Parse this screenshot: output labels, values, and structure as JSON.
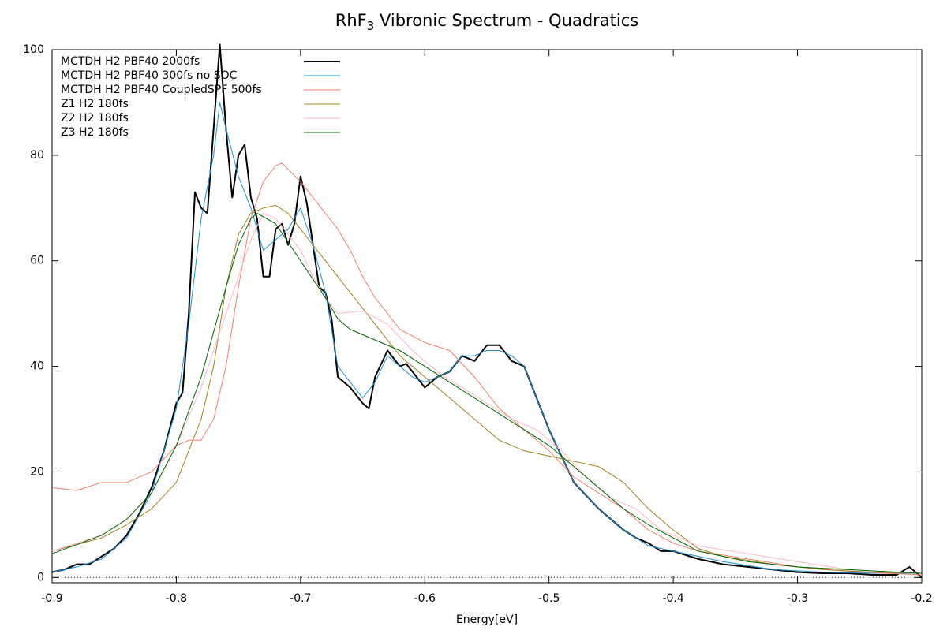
{
  "chart_data": {
    "type": "line",
    "title": [
      "RhF",
      "3",
      " Vibronic Spectrum - Quadratics"
    ],
    "x_label": "Energy[eV]",
    "xlim": [
      -0.9,
      -0.2
    ],
    "xticks": [
      -0.9,
      -0.8,
      -0.7,
      -0.6,
      -0.5,
      -0.4,
      -0.3,
      -0.2
    ],
    "ylim": [
      -1,
      100
    ],
    "yticks": [
      0,
      20,
      40,
      60,
      80,
      100
    ],
    "zero_axis": true,
    "legend": "top-left",
    "series": [
      {
        "name": "MCTDH H2 PBF40 2000fs",
        "color": "#000000",
        "line_width": 2,
        "x": [
          -0.9,
          -0.89,
          -0.88,
          -0.87,
          -0.86,
          -0.85,
          -0.84,
          -0.83,
          -0.82,
          -0.81,
          -0.8,
          -0.795,
          -0.79,
          -0.785,
          -0.78,
          -0.775,
          -0.77,
          -0.765,
          -0.76,
          -0.755,
          -0.75,
          -0.745,
          -0.74,
          -0.735,
          -0.73,
          -0.725,
          -0.72,
          -0.715,
          -0.71,
          -0.705,
          -0.7,
          -0.695,
          -0.69,
          -0.685,
          -0.68,
          -0.675,
          -0.67,
          -0.66,
          -0.65,
          -0.645,
          -0.64,
          -0.63,
          -0.62,
          -0.615,
          -0.61,
          -0.6,
          -0.59,
          -0.58,
          -0.57,
          -0.56,
          -0.55,
          -0.54,
          -0.53,
          -0.52,
          -0.51,
          -0.5,
          -0.49,
          -0.48,
          -0.47,
          -0.46,
          -0.45,
          -0.44,
          -0.43,
          -0.42,
          -0.41,
          -0.4,
          -0.38,
          -0.36,
          -0.34,
          -0.32,
          -0.3,
          -0.28,
          -0.26,
          -0.24,
          -0.22,
          -0.21,
          -0.2
        ],
        "values": [
          1,
          1.5,
          2.5,
          2.5,
          4,
          5.5,
          8,
          12,
          17,
          24,
          33,
          35,
          50,
          73,
          70,
          69,
          85,
          101,
          85,
          72,
          80,
          82,
          72,
          68,
          57,
          57,
          66,
          67,
          63,
          67,
          76,
          71,
          63,
          55,
          54,
          49,
          38,
          36,
          33,
          32,
          38,
          43,
          40,
          40.5,
          39,
          36,
          38,
          39,
          42,
          41,
          44,
          44,
          41,
          40,
          34,
          28,
          23,
          18,
          15.5,
          13,
          11,
          9,
          7.5,
          6.5,
          5,
          5,
          3.5,
          2.5,
          2,
          1.5,
          1,
          0.8,
          0.8,
          0.5,
          0.5,
          2,
          0
        ]
      },
      {
        "name": "MCTDH H2 PBF40 300fs no SOC",
        "color": "#1a8fd8",
        "line_width": 1,
        "x": [
          -0.9,
          -0.88,
          -0.86,
          -0.84,
          -0.82,
          -0.8,
          -0.79,
          -0.78,
          -0.77,
          -0.765,
          -0.76,
          -0.75,
          -0.74,
          -0.73,
          -0.72,
          -0.71,
          -0.7,
          -0.69,
          -0.68,
          -0.67,
          -0.66,
          -0.65,
          -0.64,
          -0.63,
          -0.62,
          -0.61,
          -0.6,
          -0.59,
          -0.58,
          -0.57,
          -0.56,
          -0.55,
          -0.54,
          -0.53,
          -0.52,
          -0.51,
          -0.5,
          -0.48,
          -0.46,
          -0.44,
          -0.42,
          -0.4,
          -0.36,
          -0.32,
          -0.28,
          -0.24,
          -0.2
        ],
        "values": [
          1,
          2,
          3.5,
          7.5,
          16,
          32,
          48,
          68,
          80,
          90,
          85,
          76,
          70,
          62,
          64,
          66,
          70,
          63,
          54,
          40,
          37,
          34,
          37,
          42,
          40,
          38,
          37,
          38,
          39,
          42,
          42,
          43,
          43,
          42,
          40,
          34,
          28,
          18,
          13,
          9,
          6,
          5,
          3,
          1.5,
          1,
          0.8,
          0.8
        ]
      },
      {
        "name": "MCTDH H2 PBF40 CoupledSPF 500fs",
        "color": "#f08070",
        "line_width": 1,
        "x": [
          -0.9,
          -0.88,
          -0.86,
          -0.84,
          -0.82,
          -0.8,
          -0.79,
          -0.78,
          -0.77,
          -0.76,
          -0.75,
          -0.74,
          -0.73,
          -0.72,
          -0.715,
          -0.7,
          -0.69,
          -0.68,
          -0.67,
          -0.66,
          -0.65,
          -0.64,
          -0.62,
          -0.6,
          -0.58,
          -0.56,
          -0.54,
          -0.52,
          -0.5,
          -0.48,
          -0.46,
          -0.44,
          -0.42,
          -0.4,
          -0.38,
          -0.34,
          -0.3,
          -0.25,
          -0.2
        ],
        "values": [
          17,
          16.5,
          18,
          18,
          20,
          25,
          26,
          26,
          30,
          40,
          55,
          68,
          75,
          78,
          78.5,
          75,
          72,
          69,
          66,
          62,
          57,
          53,
          47,
          44.5,
          43,
          38,
          32,
          28,
          24,
          19,
          16,
          13,
          9,
          6.5,
          5,
          3.5,
          2,
          1,
          0.5
        ]
      },
      {
        "name": "Z1 H2 180fs",
        "color": "#a08020",
        "line_width": 1,
        "x": [
          -0.9,
          -0.86,
          -0.84,
          -0.82,
          -0.8,
          -0.78,
          -0.77,
          -0.76,
          -0.75,
          -0.74,
          -0.73,
          -0.72,
          -0.71,
          -0.7,
          -0.68,
          -0.66,
          -0.64,
          -0.62,
          -0.6,
          -0.58,
          -0.56,
          -0.54,
          -0.52,
          -0.5,
          -0.48,
          -0.46,
          -0.44,
          -0.42,
          -0.4,
          -0.38,
          -0.36,
          -0.32,
          -0.28,
          -0.24,
          -0.2
        ],
        "values": [
          5,
          7.5,
          10,
          13,
          18,
          30,
          40,
          55,
          65,
          69,
          70,
          70.5,
          69,
          66,
          60,
          54,
          48,
          42,
          38,
          34,
          30,
          26,
          24,
          23,
          22,
          21,
          18,
          13,
          9,
          5.5,
          4,
          2.5,
          1.5,
          1,
          0.8
        ]
      },
      {
        "name": "Z2 H2 180fs",
        "color": "#ffb6c1",
        "line_width": 1,
        "x": [
          -0.9,
          -0.86,
          -0.84,
          -0.82,
          -0.8,
          -0.78,
          -0.76,
          -0.74,
          -0.73,
          -0.72,
          -0.71,
          -0.7,
          -0.69,
          -0.68,
          -0.67,
          -0.65,
          -0.63,
          -0.61,
          -0.59,
          -0.57,
          -0.55,
          -0.53,
          -0.51,
          -0.49,
          -0.47,
          -0.45,
          -0.43,
          -0.41,
          -0.38,
          -0.34,
          -0.3,
          -0.26,
          -0.22,
          -0.2
        ],
        "values": [
          5,
          8,
          11,
          16,
          25,
          36,
          50,
          64,
          69,
          68,
          65,
          62,
          57,
          53,
          50,
          50.5,
          48,
          43,
          39,
          36,
          33,
          30,
          28,
          24,
          19,
          15,
          13,
          9,
          6,
          4.5,
          3,
          1.5,
          1,
          0.8
        ]
      },
      {
        "name": "Z3 H2 180fs",
        "color": "#006400",
        "line_width": 1,
        "x": [
          -0.9,
          -0.86,
          -0.84,
          -0.82,
          -0.8,
          -0.78,
          -0.76,
          -0.75,
          -0.74,
          -0.735,
          -0.72,
          -0.7,
          -0.68,
          -0.67,
          -0.66,
          -0.64,
          -0.62,
          -0.6,
          -0.58,
          -0.56,
          -0.54,
          -0.52,
          -0.5,
          -0.48,
          -0.46,
          -0.44,
          -0.42,
          -0.4,
          -0.38,
          -0.34,
          -0.3,
          -0.26,
          -0.22,
          -0.2
        ],
        "values": [
          4.5,
          8,
          11,
          16,
          25,
          38,
          55,
          63,
          68,
          69,
          67,
          60,
          53,
          49,
          47,
          45,
          43,
          40,
          37,
          34,
          31,
          28,
          25,
          21,
          17,
          13,
          10,
          7.5,
          5,
          3,
          2,
          1.5,
          1,
          0.8
        ]
      }
    ]
  }
}
